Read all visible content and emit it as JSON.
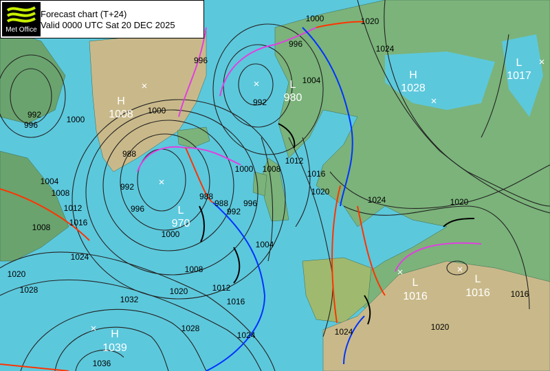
{
  "header": {
    "logo_text": "Met Office",
    "title": "Forecast chart (T+24)",
    "valid": "Valid 0000 UTC Sat 20 DEC 2025"
  },
  "colors": {
    "sea": "#5cc8dc",
    "land": "#7bb37a",
    "ice": "#c8b98a",
    "warm_front": "#ff3300",
    "cold_front": "#0033ff",
    "occluded_front": "#e040e0",
    "isobar": "#000000"
  },
  "pressure_centres": [
    {
      "type": "H",
      "value": "1008"
    },
    {
      "type": "L",
      "value": "980"
    },
    {
      "type": "L",
      "value": "970"
    },
    {
      "type": "H",
      "value": "1028"
    },
    {
      "type": "L",
      "value": "1017"
    },
    {
      "type": "L",
      "value": "1016"
    },
    {
      "type": "L",
      "value": "1016"
    },
    {
      "type": "H",
      "value": "1039"
    }
  ],
  "isobar_labels": [
    "1008",
    "1000",
    "1020",
    "1024",
    "996",
    "992",
    "996",
    "1000",
    "1000",
    "996",
    "992",
    "1004",
    "988",
    "992",
    "996",
    "1004",
    "1008",
    "1012",
    "1016",
    "1000",
    "1008",
    "1012",
    "1016",
    "1020",
    "1004",
    "988",
    "988",
    "992",
    "996",
    "1008",
    "1012",
    "1016",
    "1020",
    "1024",
    "1028",
    "1032",
    "1036",
    "1024",
    "1028",
    "1020",
    "1024",
    "1020",
    "1016",
    "1000",
    "1024",
    "1020"
  ]
}
